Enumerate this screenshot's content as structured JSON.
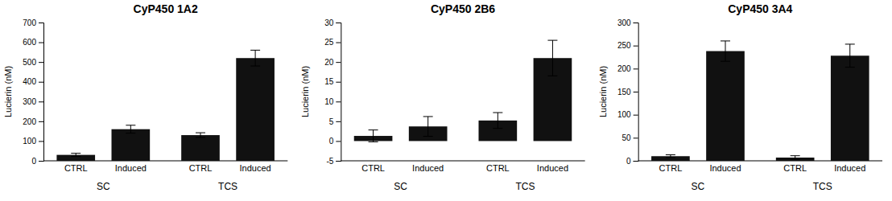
{
  "chart_data": [
    {
      "type": "bar",
      "title": "CyP450 1A2",
      "y_label": "Lucierin (nM)",
      "categories": [
        "CTRL",
        "Induced",
        "CTRL",
        "Induced"
      ],
      "groups": [
        "SC",
        "TCS"
      ],
      "values": [
        30,
        160,
        130,
        520
      ],
      "errors": [
        8,
        20,
        12,
        40
      ],
      "color": "#111111",
      "ylim": [
        0,
        700
      ],
      "yticks": [
        0,
        100,
        200,
        300,
        400,
        500,
        600,
        700
      ],
      "grid": false
    },
    {
      "type": "bar",
      "title": "CyP450 2B6",
      "y_label": "Lucierin (nM)",
      "categories": [
        "CTRL",
        "Induced",
        "CTRL",
        "Induced"
      ],
      "groups": [
        "SC",
        "TCS"
      ],
      "values": [
        1.3,
        3.7,
        5.2,
        21.0
      ],
      "errors": [
        1.5,
        2.5,
        2.0,
        4.5
      ],
      "color": "#111111",
      "ylim": [
        -5,
        30
      ],
      "yticks": [
        -5,
        0,
        5,
        10,
        15,
        20,
        25,
        30
      ],
      "grid": false
    },
    {
      "type": "bar",
      "title": "CyP450 3A4",
      "y_label": "Lucierin (nM)",
      "categories": [
        "CTRL",
        "Induced",
        "CTRL",
        "Induced"
      ],
      "groups": [
        "SC",
        "TCS"
      ],
      "values": [
        10,
        238,
        7,
        228
      ],
      "errors": [
        3,
        22,
        4,
        25
      ],
      "color": "#111111",
      "ylim": [
        0,
        300
      ],
      "yticks": [
        0,
        50,
        100,
        150,
        200,
        250,
        300
      ],
      "grid": false
    }
  ]
}
